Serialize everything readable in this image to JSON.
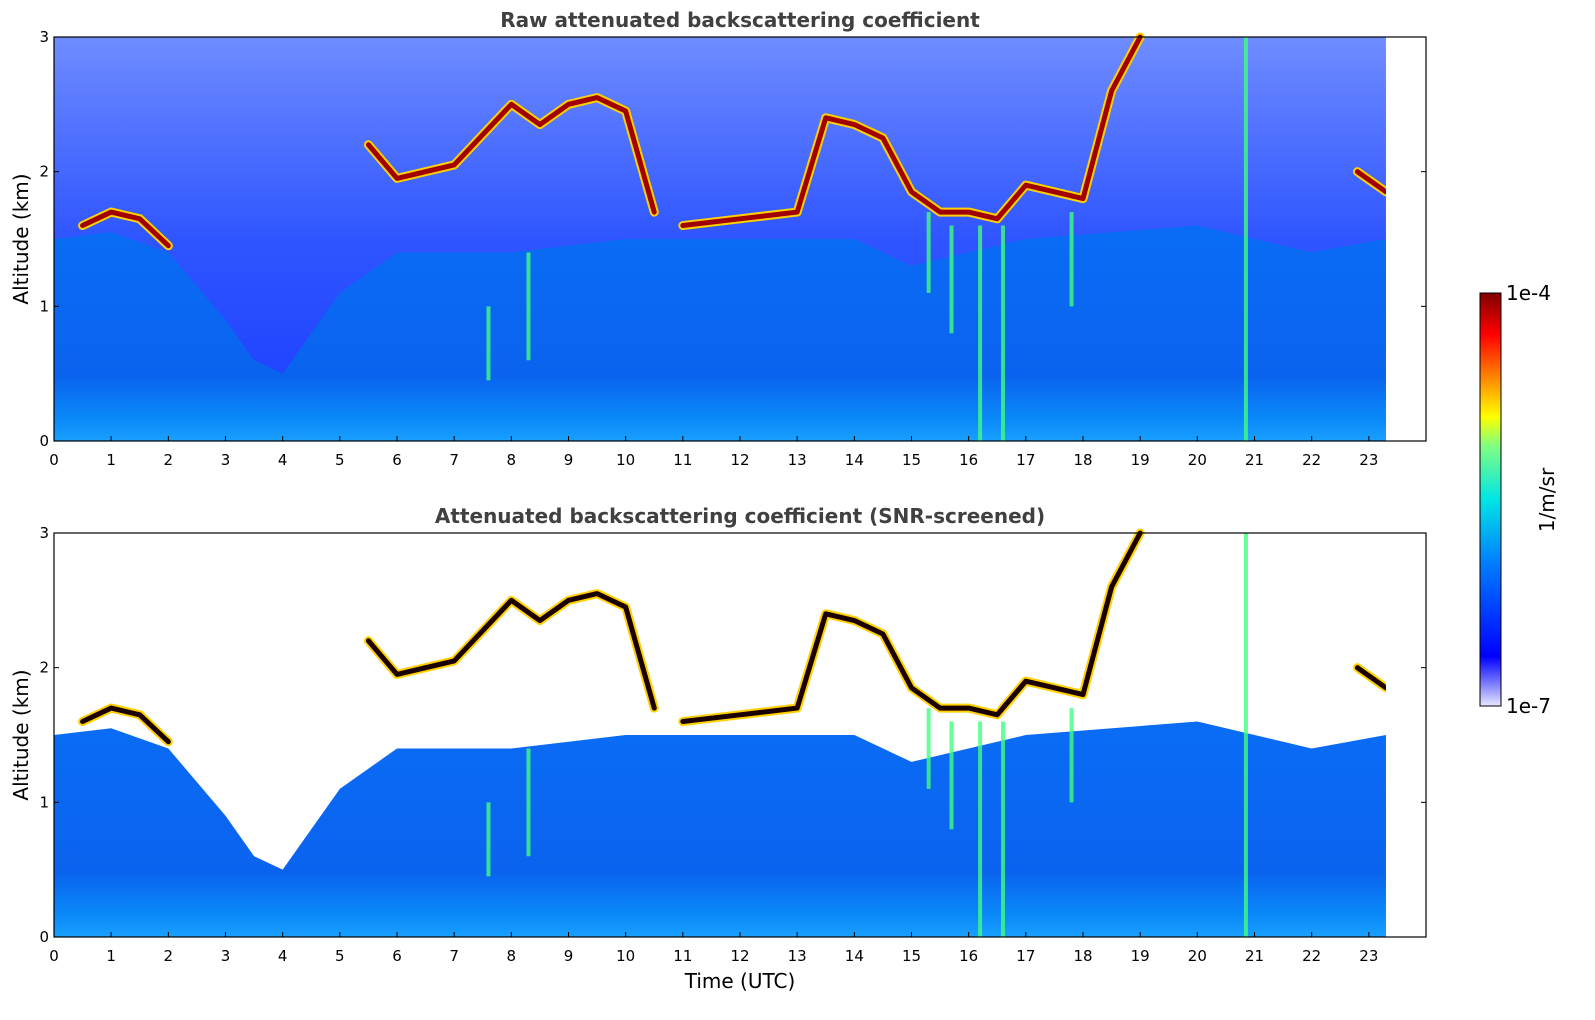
{
  "chart_data": [
    {
      "type": "heatmap",
      "title": "Raw attenuated backscattering coefficient",
      "xlabel": "",
      "ylabel": "Altitude (km)",
      "xlim": [
        0,
        24
      ],
      "ylim": [
        0,
        3
      ],
      "x_ticks": [
        "0",
        "1",
        "2",
        "3",
        "4",
        "5",
        "6",
        "7",
        "8",
        "9",
        "10",
        "11",
        "12",
        "13",
        "14",
        "15",
        "16",
        "17",
        "18",
        "19",
        "20",
        "21",
        "22",
        "23"
      ],
      "y_ticks": [
        "0",
        "1",
        "2",
        "3"
      ],
      "data_end_time": 23.3,
      "cloud_layer": {
        "t": [
          0.5,
          1.0,
          1.5,
          2.0,
          5.5,
          6.0,
          6.5,
          7.0,
          8.0,
          8.5,
          9.0,
          9.5,
          10.0,
          10.5,
          11.0,
          12.0,
          13.0,
          13.5,
          14.0,
          14.5,
          15.0,
          15.5,
          16.0,
          16.5,
          17.0,
          17.5,
          18.0,
          18.5,
          19.0,
          22.8,
          23.3
        ],
        "altitude_km": [
          1.6,
          1.7,
          1.65,
          1.45,
          2.2,
          1.95,
          2.0,
          2.05,
          2.5,
          2.35,
          2.5,
          2.55,
          2.45,
          1.7,
          1.6,
          1.65,
          1.7,
          2.4,
          2.35,
          2.25,
          1.85,
          1.7,
          1.7,
          1.65,
          1.9,
          1.85,
          1.8,
          2.6,
          3.0,
          2.0,
          1.85
        ]
      },
      "boundary_layer_top_km": {
        "t": [
          0.0,
          1.0,
          2.0,
          3.0,
          3.5,
          4.0,
          4.5,
          5.0,
          6.0,
          8.0,
          10.0,
          12.0,
          14.0,
          15.0,
          17.0,
          20.0,
          22.0,
          23.3
        ],
        "altitude_km": [
          1.5,
          1.55,
          1.4,
          0.9,
          0.6,
          0.5,
          0.8,
          1.1,
          1.4,
          1.4,
          1.5,
          1.5,
          1.5,
          1.3,
          1.5,
          1.6,
          1.4,
          1.5
        ]
      }
    },
    {
      "type": "heatmap",
      "title": "Attenuated backscattering coefficient (SNR-screened)",
      "xlabel": "Time (UTC)",
      "ylabel": "Altitude (km)",
      "xlim": [
        0,
        24
      ],
      "ylim": [
        0,
        3
      ],
      "x_ticks": [
        "0",
        "1",
        "2",
        "3",
        "4",
        "5",
        "6",
        "7",
        "8",
        "9",
        "10",
        "11",
        "12",
        "13",
        "14",
        "15",
        "16",
        "17",
        "18",
        "19",
        "20",
        "21",
        "22",
        "23"
      ],
      "y_ticks": [
        "0",
        "1",
        "2",
        "3"
      ],
      "data_end_time": 23.3
    }
  ],
  "colorbar": {
    "label": "1/m/sr",
    "max_label": "1e-4",
    "min_label": "1e-7",
    "colormap": "jet",
    "colors": [
      "#e6e6f8",
      "#0000ff",
      "#0080ff",
      "#00e0e0",
      "#80ff80",
      "#ffff00",
      "#ff8000",
      "#ff0000",
      "#800000"
    ]
  }
}
